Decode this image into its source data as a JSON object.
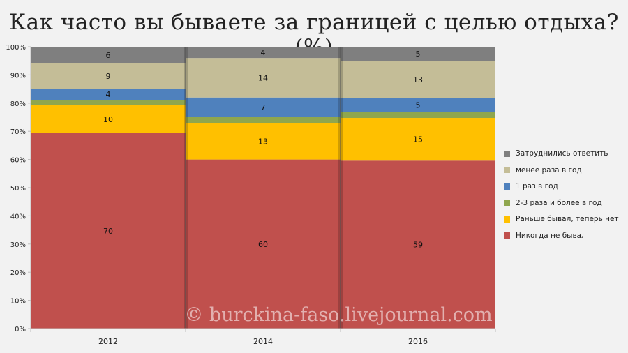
{
  "title": "Как часто вы бываете за границей с целью отдыха? (%)",
  "watermark": "© burckina-faso.livejournal.com",
  "chart_data": {
    "type": "bar",
    "stacked": true,
    "percent_stacked": true,
    "title": "Как часто вы бываете за границей с целью отдыха? (%)",
    "categories": [
      "2012",
      "2014",
      "2016"
    ],
    "ylim": [
      0,
      100
    ],
    "yticks": [
      "0%",
      "10%",
      "20%",
      "30%",
      "40%",
      "50%",
      "60%",
      "70%",
      "80%",
      "90%",
      "100%"
    ],
    "legend_position": "right",
    "series": [
      {
        "name": "Никогда не бывал",
        "color": "#c0504d",
        "values": [
          70,
          60,
          59
        ],
        "labels": [
          "70",
          "60",
          "59"
        ]
      },
      {
        "name": "Раньше бывал, теперь нет",
        "color": "#ffc000",
        "values": [
          10,
          13,
          15
        ],
        "labels": [
          "10",
          "13",
          "15"
        ]
      },
      {
        "name": "2-3 раза и более в год",
        "color": "#8fa64e",
        "values": [
          2,
          2,
          2
        ],
        "labels": [
          "",
          "",
          ""
        ]
      },
      {
        "name": "1 раз в год",
        "color": "#4f81bd",
        "values": [
          4,
          7,
          5
        ],
        "labels": [
          "4",
          "7",
          "5"
        ]
      },
      {
        "name": "менее раза в год",
        "color": "#c4bd97",
        "values": [
          9,
          14,
          13
        ],
        "labels": [
          "9",
          "14",
          "13"
        ]
      },
      {
        "name": "Затруднились ответить",
        "color": "#7f7f7f",
        "values": [
          6,
          4,
          5
        ],
        "labels": [
          "6",
          "4",
          "5"
        ]
      }
    ]
  }
}
